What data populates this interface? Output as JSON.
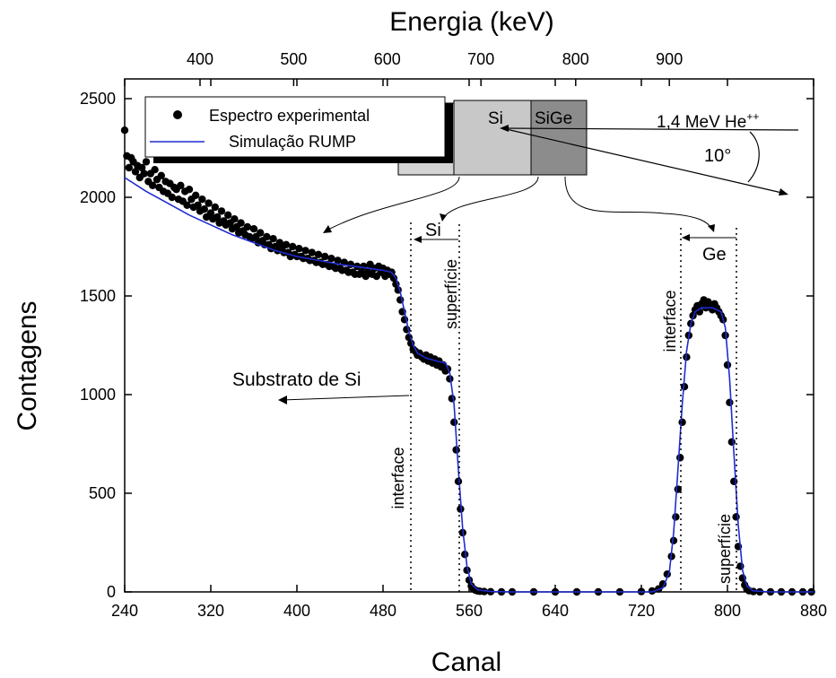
{
  "chart_data": {
    "type": "scatter",
    "xlabel": "Canal",
    "ylabel": "Contagens",
    "top_axis_label": "Energia (keV)",
    "xlim": [
      240,
      880
    ],
    "ylim": [
      0,
      2600
    ],
    "x_ticks": [
      240,
      320,
      400,
      480,
      560,
      640,
      720,
      800,
      880
    ],
    "y_ticks": [
      0,
      500,
      1000,
      1500,
      2000,
      2500
    ],
    "top_ticks": [
      {
        "label": "400",
        "channel": 310
      },
      {
        "label": "500",
        "channel": 397
      },
      {
        "label": "600",
        "channel": 484
      },
      {
        "label": "700",
        "channel": 571
      },
      {
        "label": "800",
        "channel": 659
      },
      {
        "label": "900",
        "channel": 746
      }
    ],
    "grid": false,
    "legend_position": "top-left",
    "series": [
      {
        "name": "Espectro experimental",
        "style": "points",
        "color": "#000000",
        "points": [
          [
            240,
            2340
          ],
          [
            242,
            2210
          ],
          [
            244,
            2150
          ],
          [
            246,
            2200
          ],
          [
            248,
            2180
          ],
          [
            250,
            2130
          ],
          [
            252,
            2160
          ],
          [
            254,
            2100
          ],
          [
            256,
            2150
          ],
          [
            258,
            2120
          ],
          [
            260,
            2180
          ],
          [
            262,
            2080
          ],
          [
            264,
            2120
          ],
          [
            266,
            2060
          ],
          [
            268,
            2140
          ],
          [
            270,
            2090
          ],
          [
            272,
            2050
          ],
          [
            274,
            2110
          ],
          [
            276,
            2030
          ],
          [
            278,
            2080
          ],
          [
            280,
            2020
          ],
          [
            282,
            2070
          ],
          [
            284,
            2000
          ],
          [
            286,
            2050
          ],
          [
            288,
            2040
          ],
          [
            290,
            1990
          ],
          [
            292,
            2060
          ],
          [
            294,
            1980
          ],
          [
            296,
            2030
          ],
          [
            298,
            1960
          ],
          [
            300,
            2040
          ],
          [
            302,
            1990
          ],
          [
            304,
            1950
          ],
          [
            306,
            2010
          ],
          [
            308,
            1960
          ],
          [
            310,
            1930
          ],
          [
            312,
            1990
          ],
          [
            314,
            1940
          ],
          [
            316,
            1900
          ],
          [
            318,
            1970
          ],
          [
            320,
            1920
          ],
          [
            322,
            1890
          ],
          [
            324,
            1950
          ],
          [
            326,
            1900
          ],
          [
            328,
            1870
          ],
          [
            330,
            1930
          ],
          [
            332,
            1880
          ],
          [
            334,
            1860
          ],
          [
            336,
            1910
          ],
          [
            338,
            1870
          ],
          [
            340,
            1840
          ],
          [
            342,
            1890
          ],
          [
            344,
            1850
          ],
          [
            346,
            1820
          ],
          [
            348,
            1870
          ],
          [
            350,
            1830
          ],
          [
            352,
            1810
          ],
          [
            354,
            1850
          ],
          [
            356,
            1800
          ],
          [
            358,
            1790
          ],
          [
            360,
            1840
          ],
          [
            362,
            1800
          ],
          [
            364,
            1770
          ],
          [
            366,
            1820
          ],
          [
            368,
            1780
          ],
          [
            370,
            1760
          ],
          [
            372,
            1800
          ],
          [
            374,
            1760
          ],
          [
            376,
            1740
          ],
          [
            378,
            1790
          ],
          [
            380,
            1750
          ],
          [
            382,
            1730
          ],
          [
            384,
            1770
          ],
          [
            386,
            1740
          ],
          [
            388,
            1720
          ],
          [
            390,
            1760
          ],
          [
            392,
            1720
          ],
          [
            394,
            1700
          ],
          [
            396,
            1750
          ],
          [
            398,
            1710
          ],
          [
            400,
            1700
          ],
          [
            402,
            1740
          ],
          [
            404,
            1700
          ],
          [
            406,
            1690
          ],
          [
            408,
            1730
          ],
          [
            410,
            1690
          ],
          [
            412,
            1680
          ],
          [
            414,
            1720
          ],
          [
            416,
            1680
          ],
          [
            418,
            1670
          ],
          [
            420,
            1710
          ],
          [
            422,
            1670
          ],
          [
            424,
            1660
          ],
          [
            426,
            1700
          ],
          [
            428,
            1660
          ],
          [
            430,
            1650
          ],
          [
            432,
            1690
          ],
          [
            434,
            1650
          ],
          [
            436,
            1640
          ],
          [
            438,
            1680
          ],
          [
            440,
            1640
          ],
          [
            442,
            1630
          ],
          [
            444,
            1670
          ],
          [
            446,
            1630
          ],
          [
            448,
            1620
          ],
          [
            450,
            1660
          ],
          [
            452,
            1620
          ],
          [
            454,
            1610
          ],
          [
            456,
            1650
          ],
          [
            458,
            1610
          ],
          [
            460,
            1620
          ],
          [
            462,
            1650
          ],
          [
            464,
            1600
          ],
          [
            466,
            1620
          ],
          [
            468,
            1660
          ],
          [
            470,
            1610
          ],
          [
            472,
            1640
          ],
          [
            474,
            1600
          ],
          [
            476,
            1650
          ],
          [
            478,
            1620
          ],
          [
            480,
            1640
          ],
          [
            482,
            1600
          ],
          [
            484,
            1630
          ],
          [
            486,
            1610
          ],
          [
            488,
            1620
          ],
          [
            490,
            1590
          ],
          [
            492,
            1560
          ],
          [
            494,
            1530
          ],
          [
            496,
            1480
          ],
          [
            498,
            1420
          ],
          [
            500,
            1380
          ],
          [
            502,
            1330
          ],
          [
            504,
            1290
          ],
          [
            506,
            1260
          ],
          [
            508,
            1230
          ],
          [
            510,
            1220
          ],
          [
            512,
            1200
          ],
          [
            514,
            1210
          ],
          [
            516,
            1190
          ],
          [
            518,
            1180
          ],
          [
            520,
            1200
          ],
          [
            522,
            1170
          ],
          [
            524,
            1190
          ],
          [
            526,
            1160
          ],
          [
            528,
            1180
          ],
          [
            530,
            1150
          ],
          [
            532,
            1170
          ],
          [
            534,
            1140
          ],
          [
            536,
            1150
          ],
          [
            538,
            1120
          ],
          [
            540,
            1130
          ],
          [
            542,
            1080
          ],
          [
            544,
            980
          ],
          [
            546,
            860
          ],
          [
            548,
            720
          ],
          [
            550,
            560
          ],
          [
            552,
            420
          ],
          [
            554,
            300
          ],
          [
            556,
            190
          ],
          [
            558,
            110
          ],
          [
            560,
            60
          ],
          [
            562,
            30
          ],
          [
            564,
            15
          ],
          [
            566,
            8
          ],
          [
            568,
            5
          ],
          [
            570,
            3
          ],
          [
            574,
            2
          ],
          [
            580,
            1
          ],
          [
            590,
            0
          ],
          [
            600,
            0
          ],
          [
            620,
            0
          ],
          [
            640,
            0
          ],
          [
            660,
            0
          ],
          [
            680,
            0
          ],
          [
            700,
            0
          ],
          [
            720,
            2
          ],
          [
            730,
            5
          ],
          [
            736,
            15
          ],
          [
            740,
            40
          ],
          [
            744,
            90
          ],
          [
            748,
            180
          ],
          [
            750,
            260
          ],
          [
            752,
            380
          ],
          [
            754,
            520
          ],
          [
            756,
            680
          ],
          [
            758,
            860
          ],
          [
            760,
            1040
          ],
          [
            762,
            1190
          ],
          [
            764,
            1300
          ],
          [
            766,
            1360
          ],
          [
            768,
            1400
          ],
          [
            770,
            1430
          ],
          [
            772,
            1450
          ],
          [
            774,
            1420
          ],
          [
            776,
            1460
          ],
          [
            778,
            1480
          ],
          [
            780,
            1440
          ],
          [
            782,
            1470
          ],
          [
            784,
            1450
          ],
          [
            786,
            1430
          ],
          [
            788,
            1460
          ],
          [
            790,
            1440
          ],
          [
            792,
            1420
          ],
          [
            794,
            1400
          ],
          [
            796,
            1380
          ],
          [
            798,
            1300
          ],
          [
            800,
            1150
          ],
          [
            802,
            960
          ],
          [
            804,
            760
          ],
          [
            806,
            560
          ],
          [
            808,
            380
          ],
          [
            810,
            230
          ],
          [
            812,
            130
          ],
          [
            814,
            70
          ],
          [
            816,
            35
          ],
          [
            818,
            15
          ],
          [
            820,
            6
          ],
          [
            824,
            2
          ],
          [
            830,
            0
          ],
          [
            840,
            0
          ],
          [
            850,
            0
          ],
          [
            860,
            0
          ],
          [
            870,
            0
          ],
          [
            878,
            0
          ]
        ]
      },
      {
        "name": "Simulação RUMP",
        "style": "line",
        "color": "#1f2bd1",
        "points": [
          [
            240,
            2100
          ],
          [
            260,
            2030
          ],
          [
            280,
            1970
          ],
          [
            300,
            1910
          ],
          [
            320,
            1860
          ],
          [
            340,
            1810
          ],
          [
            360,
            1770
          ],
          [
            380,
            1730
          ],
          [
            400,
            1700
          ],
          [
            420,
            1680
          ],
          [
            440,
            1660
          ],
          [
            460,
            1645
          ],
          [
            480,
            1630
          ],
          [
            488,
            1620
          ],
          [
            492,
            1590
          ],
          [
            496,
            1520
          ],
          [
            500,
            1420
          ],
          [
            504,
            1320
          ],
          [
            508,
            1250
          ],
          [
            512,
            1210
          ],
          [
            520,
            1185
          ],
          [
            530,
            1170
          ],
          [
            538,
            1160
          ],
          [
            542,
            1110
          ],
          [
            546,
            950
          ],
          [
            550,
            620
          ],
          [
            554,
            320
          ],
          [
            558,
            130
          ],
          [
            562,
            40
          ],
          [
            568,
            10
          ],
          [
            580,
            2
          ],
          [
            600,
            0
          ],
          [
            700,
            0
          ],
          [
            730,
            0
          ],
          [
            740,
            20
          ],
          [
            746,
            100
          ],
          [
            750,
            300
          ],
          [
            754,
            620
          ],
          [
            758,
            950
          ],
          [
            762,
            1220
          ],
          [
            766,
            1360
          ],
          [
            770,
            1420
          ],
          [
            776,
            1440
          ],
          [
            786,
            1440
          ],
          [
            794,
            1420
          ],
          [
            798,
            1340
          ],
          [
            802,
            1080
          ],
          [
            806,
            700
          ],
          [
            810,
            340
          ],
          [
            814,
            110
          ],
          [
            818,
            30
          ],
          [
            824,
            5
          ],
          [
            840,
            0
          ],
          [
            880,
            0
          ]
        ]
      }
    ],
    "annotations": {
      "beam": "1,4 MeV  He",
      "beam_sup": "++",
      "angle": "10°",
      "layer_si": "Si",
      "layer_sige": "SiGe",
      "si_edge": "Si",
      "ge_edge": "Ge",
      "substrate": "Substrato de Si",
      "interface_si": "interface",
      "surface_si": "superfície",
      "interface_ge": "interface",
      "surface_ge": "superfície"
    }
  },
  "colors": {
    "points": "#000000",
    "sim_line": "#1f2bd1",
    "si_layer": "#c8c8c8",
    "sige_layer": "#8c8c8c",
    "substrate_block": "#d4d4d4"
  }
}
